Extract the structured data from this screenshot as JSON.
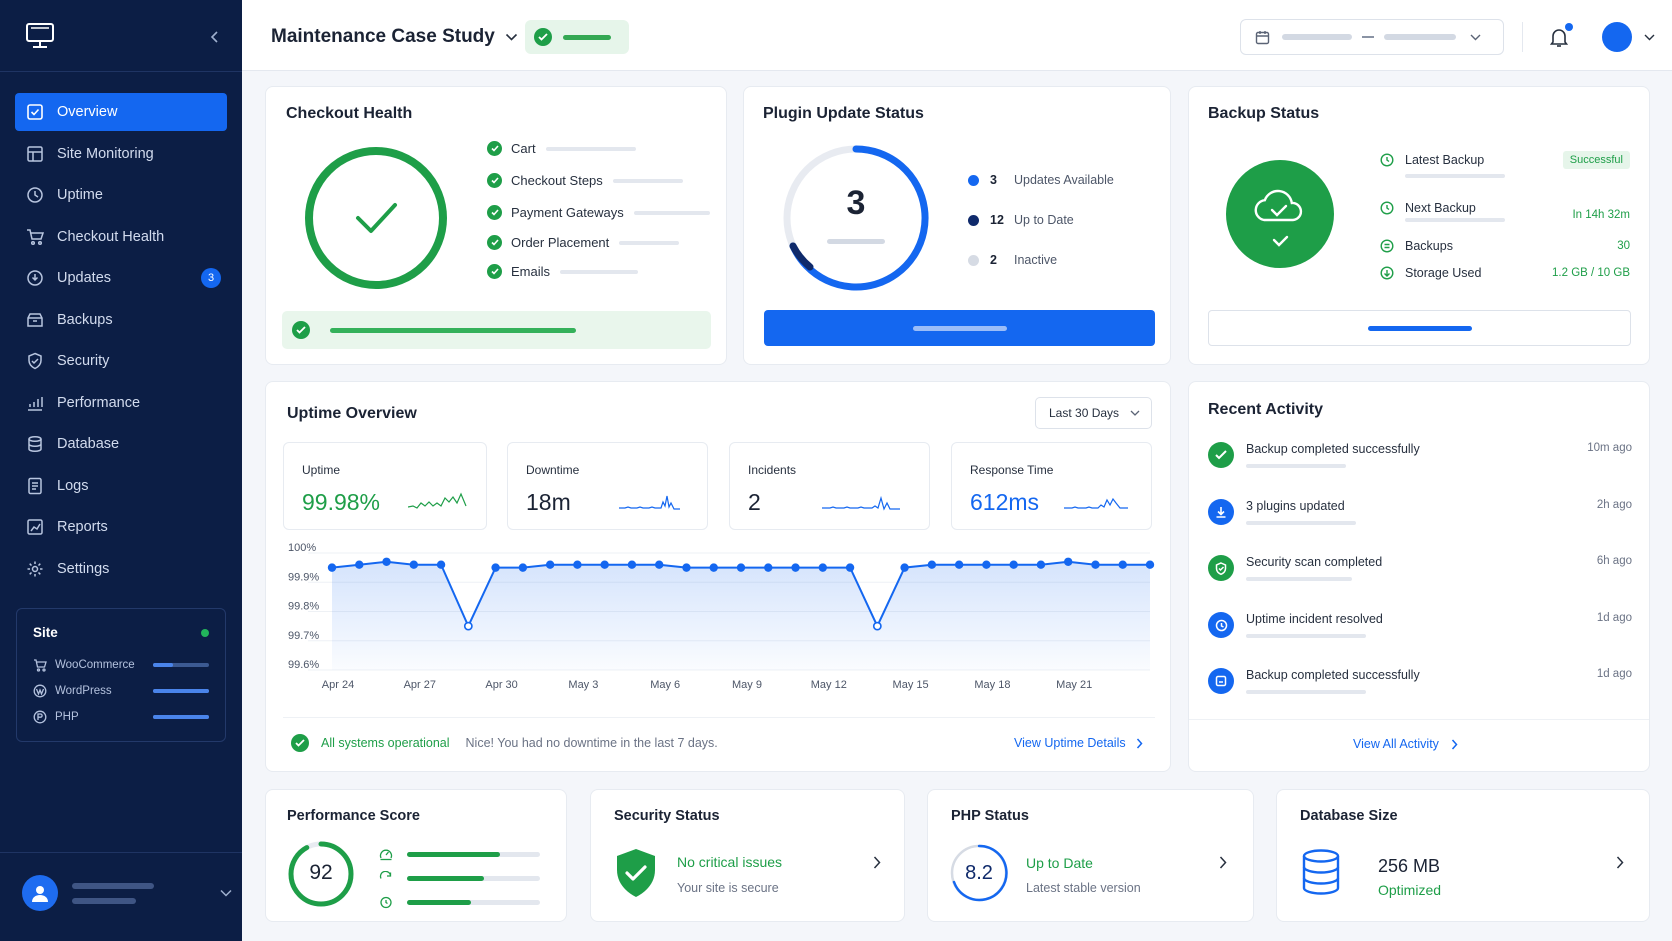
{
  "topbar": {
    "title": "Maintenance Case Study"
  },
  "sidebar": {
    "items": [
      {
        "label": "Overview",
        "icon": "overview-icon",
        "active": true
      },
      {
        "label": "Site Monitoring",
        "icon": "monitoring-icon"
      },
      {
        "label": "Uptime",
        "icon": "clock-icon"
      },
      {
        "label": "Checkout Health",
        "icon": "cart-icon"
      },
      {
        "label": "Updates",
        "icon": "updates-icon",
        "badge": "3"
      },
      {
        "label": "Backups",
        "icon": "backup-icon"
      },
      {
        "label": "Security",
        "icon": "shield-icon"
      },
      {
        "label": "Performance",
        "icon": "performance-icon"
      },
      {
        "label": "Database",
        "icon": "database-icon"
      },
      {
        "label": "Logs",
        "icon": "logs-icon"
      },
      {
        "label": "Reports",
        "icon": "reports-icon"
      },
      {
        "label": "Settings",
        "icon": "gear-icon"
      }
    ],
    "site": {
      "title": "Site",
      "rows": [
        {
          "label": "WooCommerce",
          "level": 0.35
        },
        {
          "label": "WordPress",
          "level": 1.0
        },
        {
          "label": "PHP",
          "level": 1.0
        }
      ]
    }
  },
  "checkout": {
    "title": "Checkout Health",
    "items": [
      "Cart",
      "Checkout Steps",
      "Payment Gateways",
      "Order Placement",
      "Emails"
    ]
  },
  "plugin": {
    "title": "Plugin Update Status",
    "value": "3",
    "legend": [
      {
        "n": "3",
        "label": "Updates Available",
        "color": "#1467f0"
      },
      {
        "n": "12",
        "label": "Up to Date",
        "color": "#0f2a6b"
      },
      {
        "n": "2",
        "label": "Inactive",
        "color": "#d6dbe4"
      }
    ]
  },
  "backup": {
    "title": "Backup Status",
    "rows": [
      {
        "label": "Latest Backup",
        "value": "Successful",
        "icon": "clock-icon"
      },
      {
        "label": "Next Backup",
        "value": "In 14h 32m",
        "icon": "clock-icon"
      },
      {
        "label": "Backups",
        "value": "30",
        "icon": "backup-icon"
      },
      {
        "label": "Storage Used",
        "value": "1.2 GB / 10 GB",
        "icon": "storage-icon"
      }
    ]
  },
  "uptime": {
    "title": "Uptime Overview",
    "range": "Last 30 Days",
    "metrics": [
      {
        "label": "Uptime",
        "value": "99.98%",
        "color": "#1e9e48"
      },
      {
        "label": "Downtime",
        "value": "18m",
        "color": "#1b2334"
      },
      {
        "label": "Incidents",
        "value": "2",
        "color": "#1b2334"
      },
      {
        "label": "Response Time",
        "value": "612ms",
        "color": "#1467f0"
      }
    ],
    "status": "All systems operational",
    "note": "Nice! You had no downtime in the last 7 days.",
    "link": "View Uptime Details"
  },
  "chart_data": {
    "type": "line",
    "x": [
      "Apr 24",
      "Apr 25",
      "Apr 26",
      "Apr 27",
      "Apr 28",
      "Apr 29",
      "Apr 30",
      "May 1",
      "May 2",
      "May 3",
      "May 4",
      "May 5",
      "May 6",
      "May 7",
      "May 8",
      "May 9",
      "May 10",
      "May 11",
      "May 12",
      "May 13",
      "May 14",
      "May 15",
      "May 16",
      "May 17",
      "May 18",
      "May 19",
      "May 20",
      "May 21",
      "May 22",
      "May 23",
      "May 24"
    ],
    "y": [
      99.95,
      99.96,
      99.97,
      99.96,
      99.96,
      99.75,
      99.95,
      99.95,
      99.96,
      99.96,
      99.96,
      99.96,
      99.96,
      99.95,
      99.95,
      99.95,
      99.95,
      99.95,
      99.95,
      99.95,
      99.75,
      99.95,
      99.96,
      99.96,
      99.96,
      99.96,
      99.96,
      99.97,
      99.96,
      99.96,
      99.96
    ],
    "xticks": [
      "Apr 24",
      "Apr 27",
      "Apr 30",
      "May 3",
      "May 6",
      "May 9",
      "May 12",
      "May 15",
      "May 18",
      "May 21"
    ],
    "yticks": [
      "100%",
      "99.9%",
      "99.8%",
      "99.7%",
      "99.6%"
    ],
    "ylim": [
      99.6,
      100
    ],
    "grid": true,
    "color": "#1467f0"
  },
  "activity": {
    "title": "Recent Activity",
    "items": [
      {
        "text": "Backup completed successfully",
        "time": "10m ago",
        "kind": "success"
      },
      {
        "text": "3 plugins updated",
        "time": "2h ago",
        "kind": "update"
      },
      {
        "text": "Security scan completed",
        "time": "6h ago",
        "kind": "security"
      },
      {
        "text": "Uptime incident resolved",
        "time": "1d ago",
        "kind": "uptime"
      },
      {
        "text": "Backup completed successfully",
        "time": "1d ago",
        "kind": "backup"
      }
    ],
    "link": "View All Activity"
  },
  "performance": {
    "title": "Performance Score",
    "score": "92",
    "score_pct": 0.92,
    "bars": [
      0.7,
      0.58,
      0.48
    ]
  },
  "security": {
    "title": "Security Status",
    "status": "No critical issues",
    "sub": "Your site is secure"
  },
  "php": {
    "title": "PHP Status",
    "version": "8.2",
    "status": "Up to Date",
    "sub": "Latest stable version"
  },
  "database": {
    "title": "Database Size",
    "size": "256 MB",
    "status": "Optimized"
  }
}
